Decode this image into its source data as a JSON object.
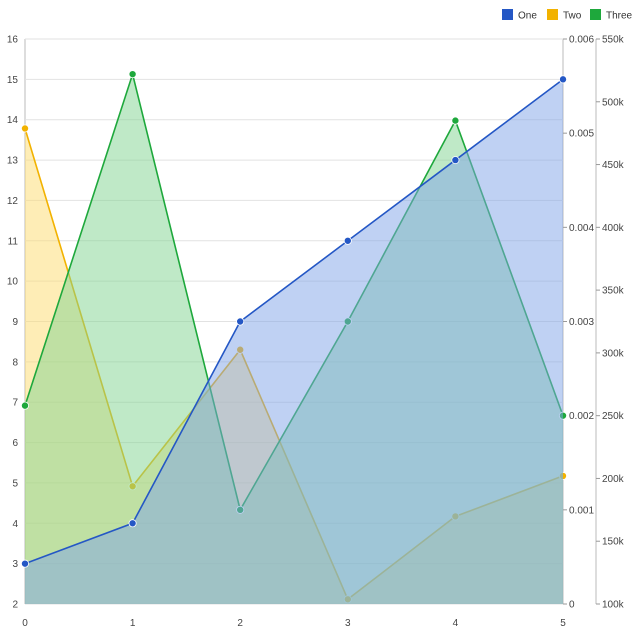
{
  "chart_data": {
    "type": "area",
    "title": "",
    "xlabel": "",
    "ylabel": "",
    "x": [
      0,
      1,
      2,
      3,
      4,
      5
    ],
    "xlim": [
      0,
      5
    ],
    "x_ticks": [
      "0",
      "1",
      "2",
      "3",
      "4",
      "5"
    ],
    "legend_position": "top-right",
    "grid": true,
    "axes": {
      "left": {
        "range": [
          2,
          16
        ],
        "ticks": [
          "2",
          "3",
          "4",
          "5",
          "6",
          "7",
          "8",
          "9",
          "10",
          "11",
          "12",
          "13",
          "14",
          "15",
          "16"
        ]
      },
      "right1": {
        "range": [
          0,
          0.006
        ],
        "ticks": [
          "0",
          "0.001",
          "0.002",
          "0.003",
          "0.004",
          "0.005",
          "0.006"
        ]
      },
      "right2": {
        "range": [
          100000,
          550000
        ],
        "ticks": [
          "100k",
          "150k",
          "200k",
          "250k",
          "300k",
          "350k",
          "400k",
          "450k",
          "500k",
          "550k"
        ]
      }
    },
    "series": [
      {
        "name": "Two",
        "color": "#f2b200",
        "fill": "#fddc6e",
        "axis": "right1",
        "values": [
          0.00505,
          0.00125,
          0.0027,
          5e-05,
          0.00093,
          0.00136
        ]
      },
      {
        "name": "Three",
        "color": "#1ea83c",
        "fill": "#7fd38f",
        "axis": "right2",
        "values": [
          258000,
          522000,
          175000,
          325000,
          485000,
          250000
        ]
      },
      {
        "name": "One",
        "color": "#2457c5",
        "fill": "#7fa3e8",
        "axis": "left",
        "values": [
          3,
          4,
          9,
          11,
          13,
          15
        ]
      }
    ]
  }
}
